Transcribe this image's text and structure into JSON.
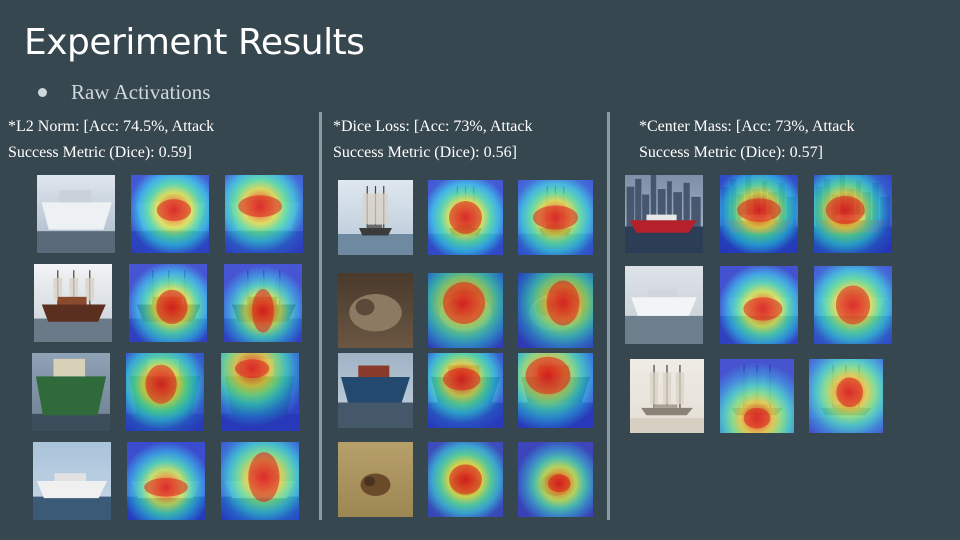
{
  "slide": {
    "title": "Experiment Results",
    "bullet": "Raw Activations"
  },
  "panels": [
    {
      "caption_line1": "*L2 Norm: [Acc: 74.5%, Attack",
      "caption_line2": "Success Metric (Dice): 0.59]"
    },
    {
      "caption_line1": "*Dice Loss: [Acc: 73%, Attack",
      "caption_line2": "Success Metric (Dice): 0.56]"
    },
    {
      "caption_line1": "*Center Mass: [Acc: 73%, Attack",
      "caption_line2": "Success Metric (Dice): 0.57]"
    }
  ],
  "colors": {
    "background": "#37474f",
    "divider": "#8d9a9f",
    "heat_low": "#1f3fd6",
    "heat_mid": "#3fd2a0",
    "heat_high": "#d62020"
  }
}
